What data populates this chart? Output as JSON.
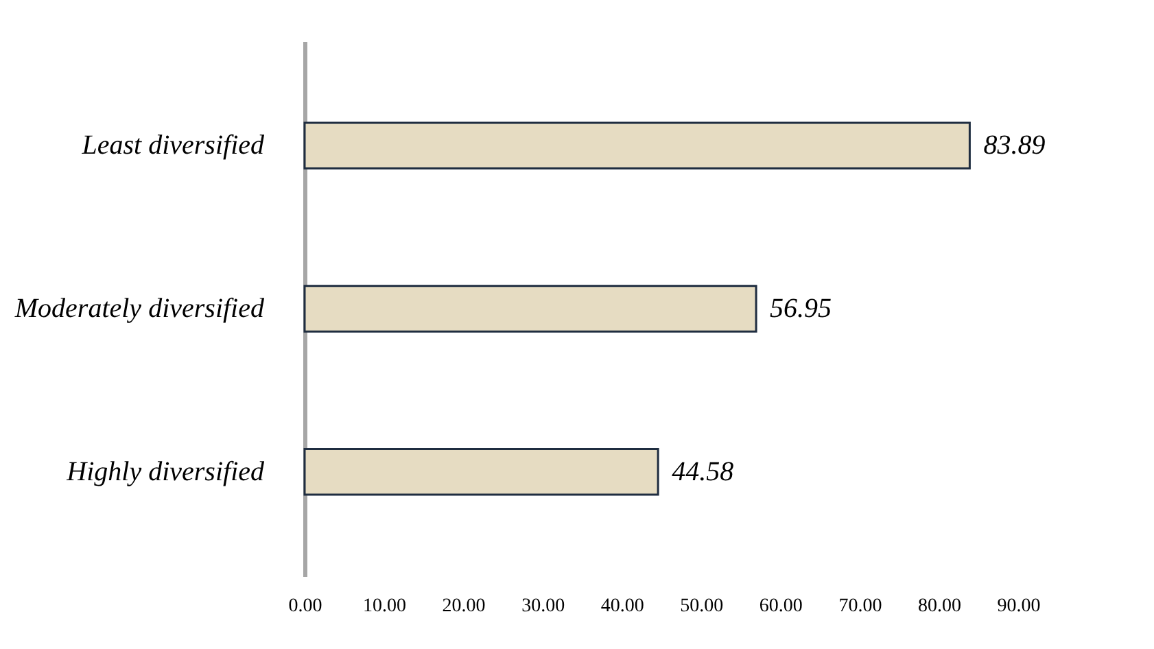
{
  "chart_data": {
    "type": "bar",
    "orientation": "horizontal",
    "categories": [
      "Least diversified",
      "Moderately diversified",
      "Highly diversified"
    ],
    "values": [
      83.89,
      56.95,
      44.58
    ],
    "color": "#e6dcc2",
    "xlim": [
      0,
      90
    ],
    "xticks": [
      {
        "value": 0,
        "label": "0.00"
      },
      {
        "value": 10,
        "label": "10.00"
      },
      {
        "value": 20,
        "label": "20.00"
      },
      {
        "value": 30,
        "label": "30.00"
      },
      {
        "value": 40,
        "label": "40.00"
      },
      {
        "value": 50,
        "label": "50.00"
      },
      {
        "value": 60,
        "label": "60.00"
      },
      {
        "value": 70,
        "label": "70.00"
      },
      {
        "value": 80,
        "label": "80.00"
      },
      {
        "value": 90,
        "label": "90.00"
      }
    ],
    "data_labels": true,
    "grid": false
  }
}
